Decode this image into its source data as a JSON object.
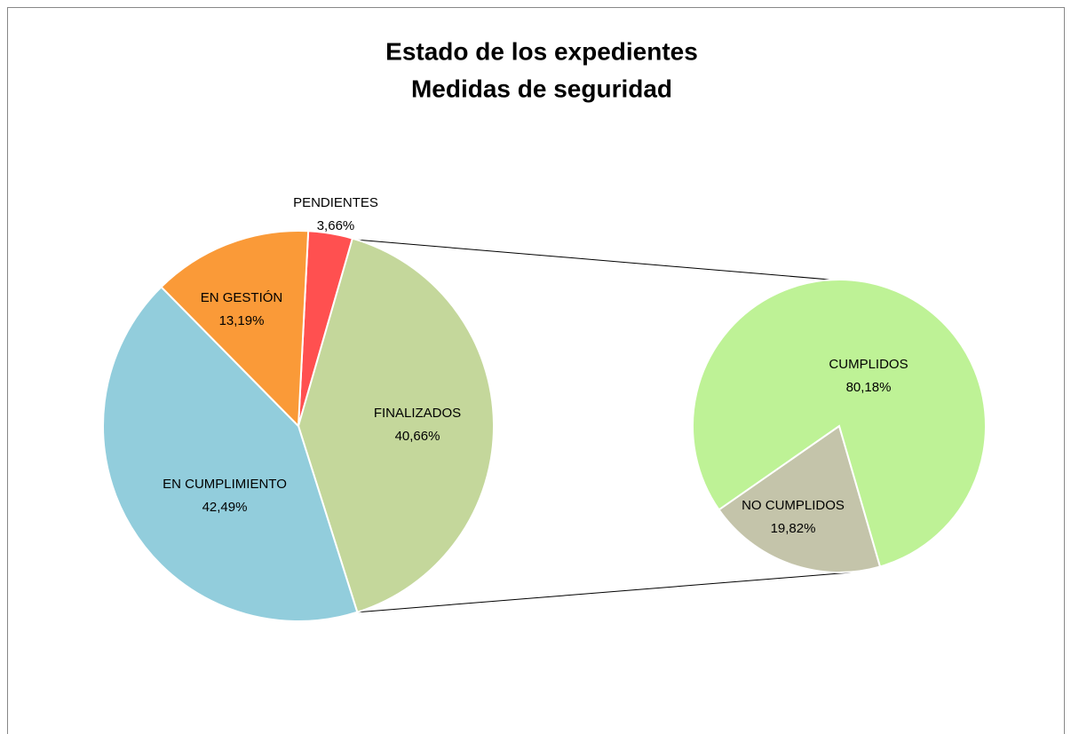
{
  "chart_data": [
    {
      "type": "pie",
      "title": "Estado de los expedientes",
      "subtitle": "Medidas de seguridad",
      "categories": [
        "PENDIENTES",
        "FINALIZADOS",
        "EN CUMPLIMIENTO",
        "EN GESTIÓN"
      ],
      "values": [
        3.66,
        40.66,
        42.49,
        13.19
      ],
      "value_labels": [
        "3,66%",
        "40,66%",
        "42,49%",
        "13,19%"
      ],
      "colors": [
        "#ff5050",
        "#c4d79b",
        "#92cddc",
        "#fa9a38"
      ]
    },
    {
      "type": "pie",
      "categories": [
        "NO CUMPLIDOS",
        "CUMPLIDOS"
      ],
      "values": [
        19.82,
        80.18
      ],
      "value_labels": [
        "19,82%",
        "80,18%"
      ],
      "colors": [
        "#c4c4aa",
        "#bef296"
      ]
    }
  ]
}
